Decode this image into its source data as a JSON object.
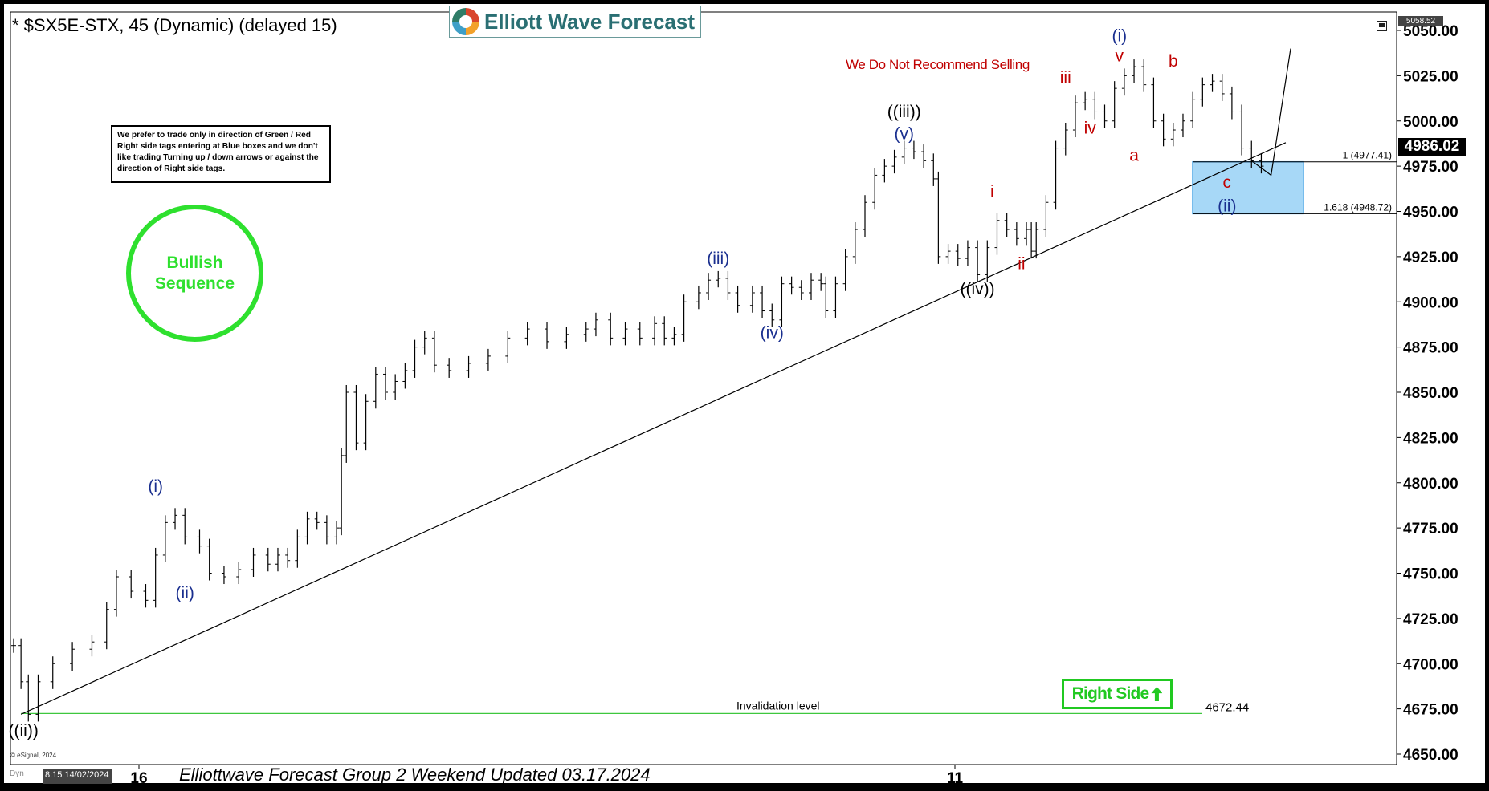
{
  "header": {
    "symbol": "* $SX5E-STX, 45 (Dynamic) (delayed 15)",
    "logo_text": "Elliott Wave Forecast"
  },
  "warning": "We Do Not Recommend Selling",
  "note": "We prefer to trade only in direction of Green / Red Right side tags entering at Blue boxes and we don't like trading Turning up / down arrows or against the direction of Right side tags.",
  "bullish_label": "Bullish\nSequence",
  "right_side_label": "Right Side",
  "footer": "Elliottwave Forecast Group 2 Weekend Updated 03.17.2024",
  "copyright": "© eSignal, 2024",
  "datetime_badge": "8:15 14/02/2024",
  "dyn_label": "Dyn",
  "last_price": "4986.02",
  "top_price": "5058.52",
  "colors": {
    "blue": "#1a2f8f",
    "red": "#c00000",
    "green": "#2ee02e",
    "box": "#a7d8f7",
    "box_border": "#4aa5e6"
  },
  "chart_data": {
    "type": "line",
    "x_tick_labels": [
      "16",
      "11"
    ],
    "y_ticks": [
      4650,
      4675,
      4700,
      4725,
      4750,
      4775,
      4800,
      4825,
      4850,
      4875,
      4900,
      4925,
      4950,
      4975,
      5000,
      5025,
      5050
    ],
    "y_tick_labels": [
      "4650.00",
      "4675.00",
      "4700.00",
      "4725.00",
      "4750.00",
      "4775.00",
      "4800.00",
      "4825.00",
      "4850.00",
      "4875.00",
      "4900.00",
      "4925.00",
      "4950.00",
      "4975.00",
      "5000.00",
      "5025.00",
      "5050.00"
    ],
    "ylim": [
      4642,
      5058.52
    ],
    "price_path": [
      [
        0,
        4710
      ],
      [
        3,
        4690
      ],
      [
        6,
        4672
      ],
      [
        10,
        4690
      ],
      [
        16,
        4700
      ],
      [
        24,
        4708
      ],
      [
        32,
        4712
      ],
      [
        38,
        4730
      ],
      [
        42,
        4748
      ],
      [
        48,
        4740
      ],
      [
        54,
        4735
      ],
      [
        58,
        4760
      ],
      [
        62,
        4778
      ],
      [
        66,
        4782
      ],
      [
        70,
        4770
      ],
      [
        76,
        4765
      ],
      [
        80,
        4750
      ],
      [
        86,
        4748
      ],
      [
        92,
        4752
      ],
      [
        98,
        4760
      ],
      [
        104,
        4755
      ],
      [
        108,
        4760
      ],
      [
        112,
        4757
      ],
      [
        116,
        4770
      ],
      [
        120,
        4780
      ],
      [
        124,
        4778
      ],
      [
        128,
        4770
      ],
      [
        132,
        4775
      ],
      [
        134,
        4815
      ],
      [
        136,
        4850
      ],
      [
        140,
        4822
      ],
      [
        144,
        4845
      ],
      [
        148,
        4860
      ],
      [
        152,
        4850
      ],
      [
        156,
        4856
      ],
      [
        160,
        4862
      ],
      [
        164,
        4875
      ],
      [
        168,
        4880
      ],
      [
        172,
        4865
      ],
      [
        178,
        4862
      ],
      [
        186,
        4866
      ],
      [
        194,
        4870
      ],
      [
        202,
        4880
      ],
      [
        210,
        4885
      ],
      [
        218,
        4878
      ],
      [
        226,
        4882
      ],
      [
        234,
        4885
      ],
      [
        238,
        4890
      ],
      [
        244,
        4880
      ],
      [
        250,
        4885
      ],
      [
        256,
        4880
      ],
      [
        262,
        4888
      ],
      [
        266,
        4880
      ],
      [
        270,
        4882
      ],
      [
        274,
        4900
      ],
      [
        280,
        4905
      ],
      [
        284,
        4912
      ],
      [
        288,
        4913
      ],
      [
        292,
        4905
      ],
      [
        296,
        4898
      ],
      [
        302,
        4905
      ],
      [
        306,
        4895
      ],
      [
        310,
        4890
      ],
      [
        314,
        4910
      ],
      [
        318,
        4908
      ],
      [
        322,
        4905
      ],
      [
        326,
        4912
      ],
      [
        330,
        4910
      ],
      [
        332,
        4895
      ],
      [
        336,
        4910
      ],
      [
        340,
        4925
      ],
      [
        344,
        4940
      ],
      [
        348,
        4955
      ],
      [
        352,
        4970
      ],
      [
        356,
        4975
      ],
      [
        360,
        4980
      ],
      [
        364,
        4985
      ],
      [
        368,
        4983
      ],
      [
        372,
        4978
      ],
      [
        376,
        4968
      ],
      [
        378,
        4925
      ],
      [
        382,
        4928
      ],
      [
        386,
        4924
      ],
      [
        390,
        4930
      ],
      [
        394,
        4915
      ],
      [
        398,
        4930
      ],
      [
        402,
        4945
      ],
      [
        406,
        4940
      ],
      [
        410,
        4935
      ],
      [
        414,
        4940
      ],
      [
        416,
        4928
      ],
      [
        418,
        4940
      ],
      [
        422,
        4955
      ],
      [
        426,
        4985
      ],
      [
        430,
        4995
      ],
      [
        434,
        5010
      ],
      [
        438,
        5012
      ],
      [
        442,
        5005
      ],
      [
        446,
        5000
      ],
      [
        450,
        5018
      ],
      [
        454,
        5025
      ],
      [
        458,
        5030
      ],
      [
        462,
        5020
      ],
      [
        466,
        5000
      ],
      [
        470,
        4990
      ],
      [
        474,
        4995
      ],
      [
        478,
        5000
      ],
      [
        482,
        5012
      ],
      [
        486,
        5020
      ],
      [
        490,
        5022
      ],
      [
        494,
        5015
      ],
      [
        498,
        5005
      ],
      [
        502,
        4985
      ],
      [
        506,
        4978
      ],
      [
        510,
        4975
      ]
    ],
    "projection": [
      [
        506,
        4978
      ],
      [
        514,
        4970
      ],
      [
        522,
        5040
      ]
    ],
    "trendline": {
      "from": [
        3,
        4672
      ],
      "to": [
        520,
        4988
      ]
    },
    "invalidation": {
      "value": 4672.44,
      "label": "Invalidation level",
      "value_label": "4672.44"
    },
    "fib_box": {
      "top": 4977.41,
      "bottom": 4948.72,
      "top_label": "1 (4977.41)",
      "bottom_label": "1.618 (4948.72)"
    },
    "wave_labels": [
      {
        "text": "((ii))",
        "x": 4,
        "y": 4660,
        "color": "black"
      },
      {
        "text": "(i)",
        "x": 58,
        "y": 4795,
        "color": "blue"
      },
      {
        "text": "(ii)",
        "x": 70,
        "y": 4736,
        "color": "blue"
      },
      {
        "text": "(iii)",
        "x": 288,
        "y": 4921,
        "color": "blue"
      },
      {
        "text": "(iv)",
        "x": 310,
        "y": 4880,
        "color": "blue"
      },
      {
        "text": "((iii))",
        "x": 364,
        "y": 5002,
        "color": "black"
      },
      {
        "text": "(v)",
        "x": 364,
        "y": 4990,
        "color": "blue"
      },
      {
        "text": "((iv))",
        "x": 394,
        "y": 4904,
        "color": "black"
      },
      {
        "text": "i",
        "x": 400,
        "y": 4958,
        "color": "red"
      },
      {
        "text": "ii",
        "x": 412,
        "y": 4918,
        "color": "red"
      },
      {
        "text": "iii",
        "x": 430,
        "y": 5021,
        "color": "red"
      },
      {
        "text": "iv",
        "x": 440,
        "y": 4993,
        "color": "red"
      },
      {
        "text": "(i)",
        "x": 452,
        "y": 5044,
        "color": "blue"
      },
      {
        "text": "v",
        "x": 452,
        "y": 5033,
        "color": "red"
      },
      {
        "text": "a",
        "x": 458,
        "y": 4978,
        "color": "red"
      },
      {
        "text": "b",
        "x": 474,
        "y": 5030,
        "color": "red"
      },
      {
        "text": "c",
        "x": 496,
        "y": 4963,
        "color": "red"
      },
      {
        "text": "(ii)",
        "x": 496,
        "y": 4950,
        "color": "blue"
      }
    ]
  }
}
